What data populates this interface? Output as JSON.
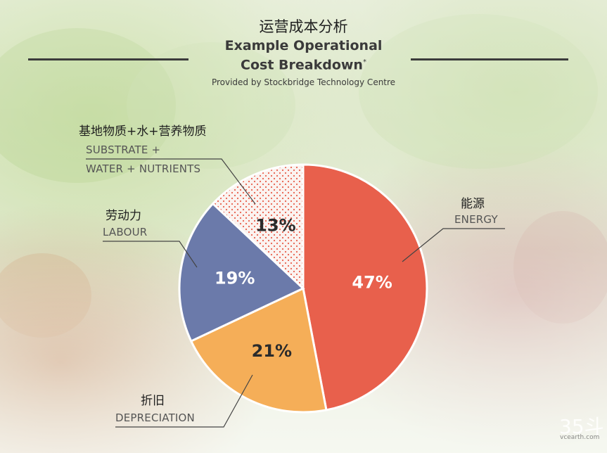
{
  "header": {
    "title_cn": "运营成本分析",
    "title_en_line1": "Example Operational",
    "title_en_line2": "Cost Breakdown",
    "title_mark": "*",
    "source": "Provided by Stockbridge Technology Centre"
  },
  "labels": {
    "energy_cn": "能源",
    "energy_en": "ENERGY",
    "depreciation_cn": "折旧",
    "depreciation_en": "DEPRECIATION",
    "labour_cn": "劳动力",
    "labour_en": "LABOUR",
    "substrate_cn": "基地物质+水+营养物质",
    "substrate_en_line1": "SUBSTRATE +",
    "substrate_en_line2": "WATER + NUTRIENTS"
  },
  "watermark": {
    "main": "35斗",
    "sub": "vcearth.com"
  },
  "colors": {
    "energy": "#e8604c",
    "depreciation": "#f5ae58",
    "labour": "#6b7aaa",
    "substrate_dots": "#e8604c",
    "rule": "#3b3b3b"
  },
  "chart_data": {
    "type": "pie",
    "title": "Example Operational Cost Breakdown",
    "slices": [
      {
        "label": "ENERGY",
        "value": 47,
        "display": "47%"
      },
      {
        "label": "DEPRECIATION",
        "value": 21,
        "display": "21%"
      },
      {
        "label": "LABOUR",
        "value": 19,
        "display": "19%"
      },
      {
        "label": "SUBSTRATE + WATER + NUTRIENTS",
        "value": 13,
        "display": "13%"
      }
    ],
    "legend": "none"
  }
}
